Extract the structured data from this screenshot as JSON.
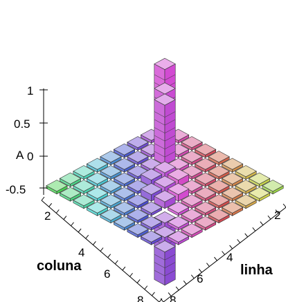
{
  "chart_data": {
    "type": "bar3d",
    "title": "",
    "z_axis_label": "A",
    "x_axis_label": "coluna",
    "y_axis_label": "linha",
    "z_ticks": [
      "1",
      "0.5",
      "0",
      "-0.5"
    ],
    "x_ticks": [
      "2",
      "4",
      "6",
      "8"
    ],
    "y_ticks": [
      "2",
      "4",
      "6",
      "8"
    ],
    "grid": false,
    "rows": [
      1,
      2,
      3,
      4,
      5,
      6,
      7,
      8,
      9
    ],
    "columns": [
      1,
      2,
      3,
      4,
      5,
      6,
      7,
      8,
      9
    ],
    "values": [
      [
        1.0,
        0.0,
        0.0,
        0.0,
        0.0,
        0.0,
        0.0,
        0.0,
        0.0
      ],
      [
        0.0,
        0.85,
        0.0,
        0.0,
        0.0,
        0.0,
        0.0,
        0.0,
        0.0
      ],
      [
        0.0,
        0.0,
        0.9,
        0.0,
        0.0,
        0.0,
        0.0,
        0.0,
        0.0
      ],
      [
        0.0,
        0.0,
        0.0,
        0.1,
        0.1,
        0.0,
        0.0,
        0.0,
        0.0
      ],
      [
        0.0,
        0.0,
        0.0,
        0.1,
        0.1,
        0.1,
        0.0,
        0.0,
        0.0
      ],
      [
        0.0,
        0.0,
        0.0,
        0.0,
        0.1,
        0.1,
        0.0,
        0.0,
        0.0
      ],
      [
        0.0,
        0.0,
        0.0,
        0.0,
        0.0,
        0.0,
        -0.5,
        0.0,
        0.0
      ],
      [
        0.0,
        0.0,
        0.0,
        0.0,
        0.0,
        0.0,
        0.0,
        -0.5,
        0.0
      ],
      [
        0.0,
        0.0,
        0.0,
        0.0,
        0.0,
        0.0,
        0.0,
        0.0,
        -0.5
      ]
    ],
    "tall_bar": {
      "row": 1,
      "column": 1,
      "value": 1.0
    }
  }
}
